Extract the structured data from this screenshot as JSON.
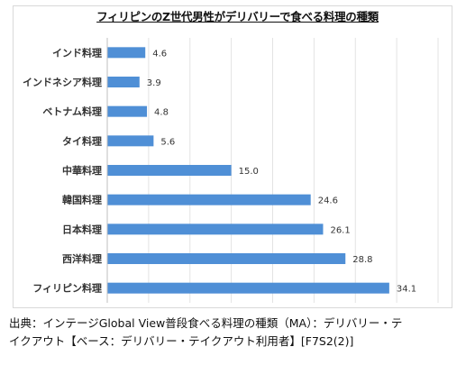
{
  "chart_data": {
    "type": "bar",
    "orientation": "horizontal",
    "title": "フィリピンのZ世代男性がデリバリーで食べる料理の種類",
    "categories": [
      "インド料理",
      "インドネシア料理",
      "ベトナム料理",
      "タイ料理",
      "中華料理",
      "韓国料理",
      "日本料理",
      "西洋料理",
      "フィリピン料理"
    ],
    "values": [
      4.6,
      3.9,
      4.8,
      5.6,
      15.0,
      24.6,
      26.1,
      28.8,
      34.1
    ],
    "value_labels": [
      "4.6",
      "3.9",
      "4.8",
      "5.6",
      "15.0",
      "24.6",
      "26.1",
      "28.8",
      "34.1"
    ],
    "xlim": [
      0,
      40
    ],
    "grid": "vertical",
    "bar_color": "#4f8fd6",
    "legend": "none"
  },
  "source": {
    "line1": "出典：インテージGlobal View普段食べる料理の種類（MA）：デリバリー・テ",
    "line2": "イクアウト【ベース：デリバリー・テイクアウト利用者】[F7S2(2)]"
  }
}
